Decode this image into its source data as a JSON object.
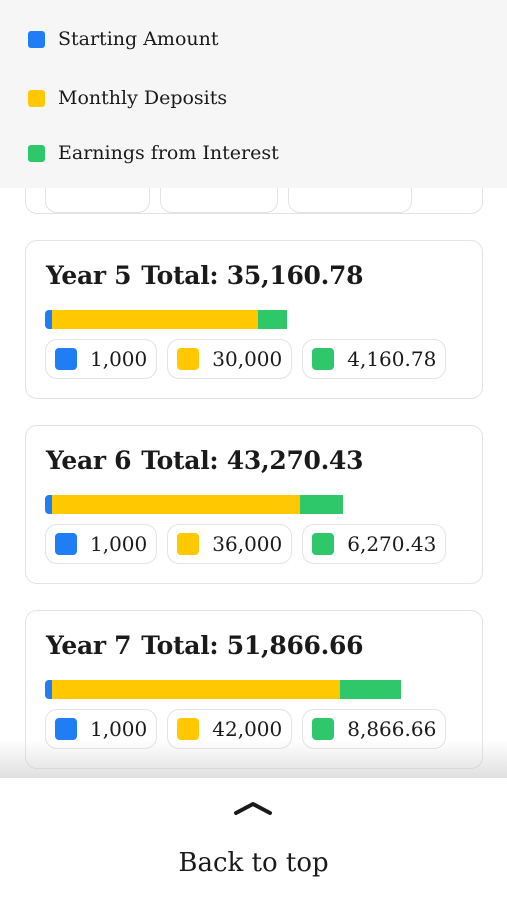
{
  "colors": {
    "starting": "#1f7ef5",
    "deposits": "#ffc800",
    "interest": "#2ec76a"
  },
  "legend": {
    "starting_label": "Starting Amount",
    "deposits_label": "Monthly Deposits",
    "interest_label": "Earnings from Interest"
  },
  "cards": [
    {
      "year_label": "Year 5",
      "total_label": "Total:",
      "total": "35,160.78",
      "starting": "1,000",
      "deposits": "30,000",
      "interest": "4,160.78",
      "bar_fractions": {
        "starting": 0.0284,
        "deposits": 0.8532,
        "interest": 0.1183
      }
    },
    {
      "year_label": "Year 6",
      "total_label": "Total:",
      "total": "43,270.43",
      "starting": "1,000",
      "deposits": "36,000",
      "interest": "6,270.43",
      "bar_fractions": {
        "starting": 0.0231,
        "deposits": 0.832,
        "interest": 0.1449
      }
    },
    {
      "year_label": "Year 7",
      "total_label": "Total:",
      "total": "51,866.66",
      "starting": "1,000",
      "deposits": "42,000",
      "interest": "8,866.66",
      "bar_fractions": {
        "starting": 0.0193,
        "deposits": 0.8098,
        "interest": 0.171
      }
    }
  ],
  "footer": {
    "back_to_top_label": "Back to top",
    "icon": "chevron-up-icon"
  }
}
